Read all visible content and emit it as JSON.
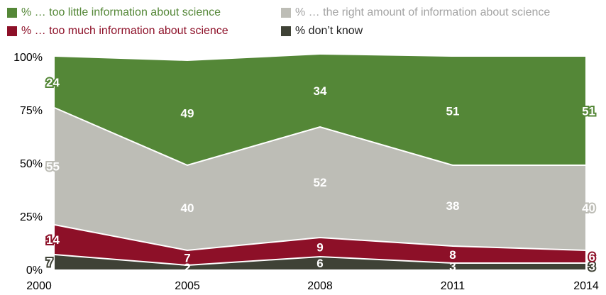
{
  "chart_data": {
    "type": "area",
    "stacked": true,
    "x": [
      "2000",
      "2005",
      "2008",
      "2011",
      "2014"
    ],
    "series": [
      {
        "name": "% don’t know",
        "values": [
          7,
          2,
          6,
          3,
          3
        ],
        "color": "#3f4236"
      },
      {
        "name": "% … too much information about science",
        "values": [
          14,
          7,
          9,
          8,
          6
        ],
        "color": "#8d1028"
      },
      {
        "name": "% … the right amount of information about science",
        "values": [
          55,
          40,
          52,
          38,
          40
        ],
        "color": "#bdbdb6"
      },
      {
        "name": "% … too little information about science",
        "values": [
          24,
          49,
          34,
          51,
          51
        ],
        "color": "#548737"
      }
    ],
    "yticks": [
      "0%",
      "25%",
      "50%",
      "75%",
      "100%"
    ],
    "ylim": [
      0,
      100
    ],
    "legend_position": "top"
  },
  "legend": {
    "too_little": {
      "label": "% … too little information about science",
      "color": "#548737",
      "text_color": "#548737"
    },
    "right_amount": {
      "label": "% … the right amount of information about science",
      "color": "#bdbdb6",
      "text_color": "#a3a3a3"
    },
    "too_much": {
      "label": "% … too much information about science",
      "color": "#8d1028",
      "text_color": "#8d1028"
    },
    "dont_know": {
      "label": "% don’t know",
      "color": "#3f4236",
      "text_color": "#222222"
    }
  }
}
